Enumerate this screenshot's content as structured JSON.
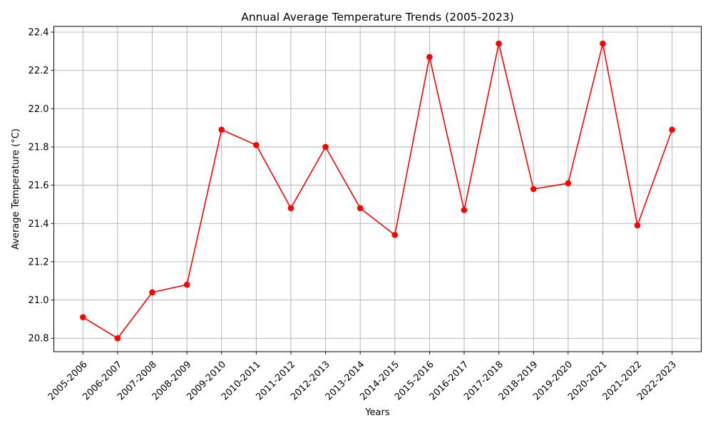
{
  "chart_data": {
    "type": "line",
    "title": "Annual Average Temperature Trends (2005-2023)",
    "xlabel": "Years",
    "ylabel": "Average Temperature (°C)",
    "grid": true,
    "categories": [
      "2005-2006",
      "2006-2007",
      "2007-2008",
      "2008-2009",
      "2009-2010",
      "2010-2011",
      "2011-2012",
      "2012-2013",
      "2013-2014",
      "2014-2015",
      "2015-2016",
      "2016-2017",
      "2017-2018",
      "2018-2019",
      "2019-2020",
      "2020-2021",
      "2021-2022",
      "2022-2023"
    ],
    "series": [
      {
        "name": "Average Temperature",
        "color": "#ff0000",
        "marker": "circle",
        "values": [
          20.91,
          20.8,
          21.04,
          21.08,
          21.89,
          21.81,
          21.48,
          21.8,
          21.48,
          21.34,
          22.27,
          21.47,
          22.34,
          21.58,
          21.61,
          22.34,
          21.39,
          21.89
        ]
      }
    ],
    "ylim": [
      20.73,
      22.43
    ],
    "yticks": [
      20.8,
      21.0,
      21.2,
      21.4,
      21.6,
      21.8,
      22.0,
      22.2,
      22.4
    ],
    "ytick_labels": [
      "20.8",
      "21.0",
      "21.2",
      "21.4",
      "21.6",
      "21.8",
      "22.0",
      "22.2",
      "22.4"
    ]
  }
}
